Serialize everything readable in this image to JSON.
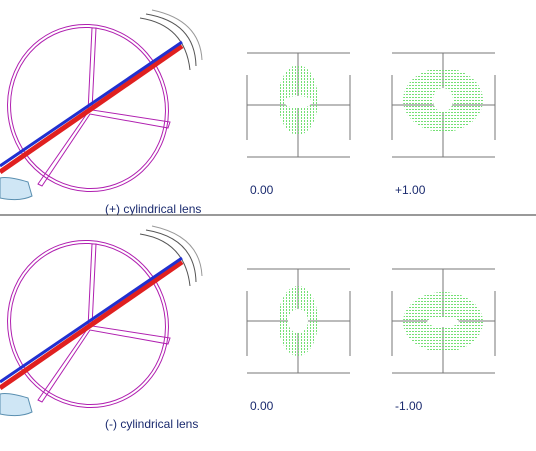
{
  "panels": [
    {
      "caption": "(+) cylindrical lens",
      "spots": [
        {
          "label": "0.00"
        },
        {
          "label": "+1.00"
        }
      ]
    },
    {
      "caption": "(-) cylindrical lens",
      "spots": [
        {
          "label": "0.00"
        },
        {
          "label": "-1.00"
        }
      ]
    }
  ]
}
